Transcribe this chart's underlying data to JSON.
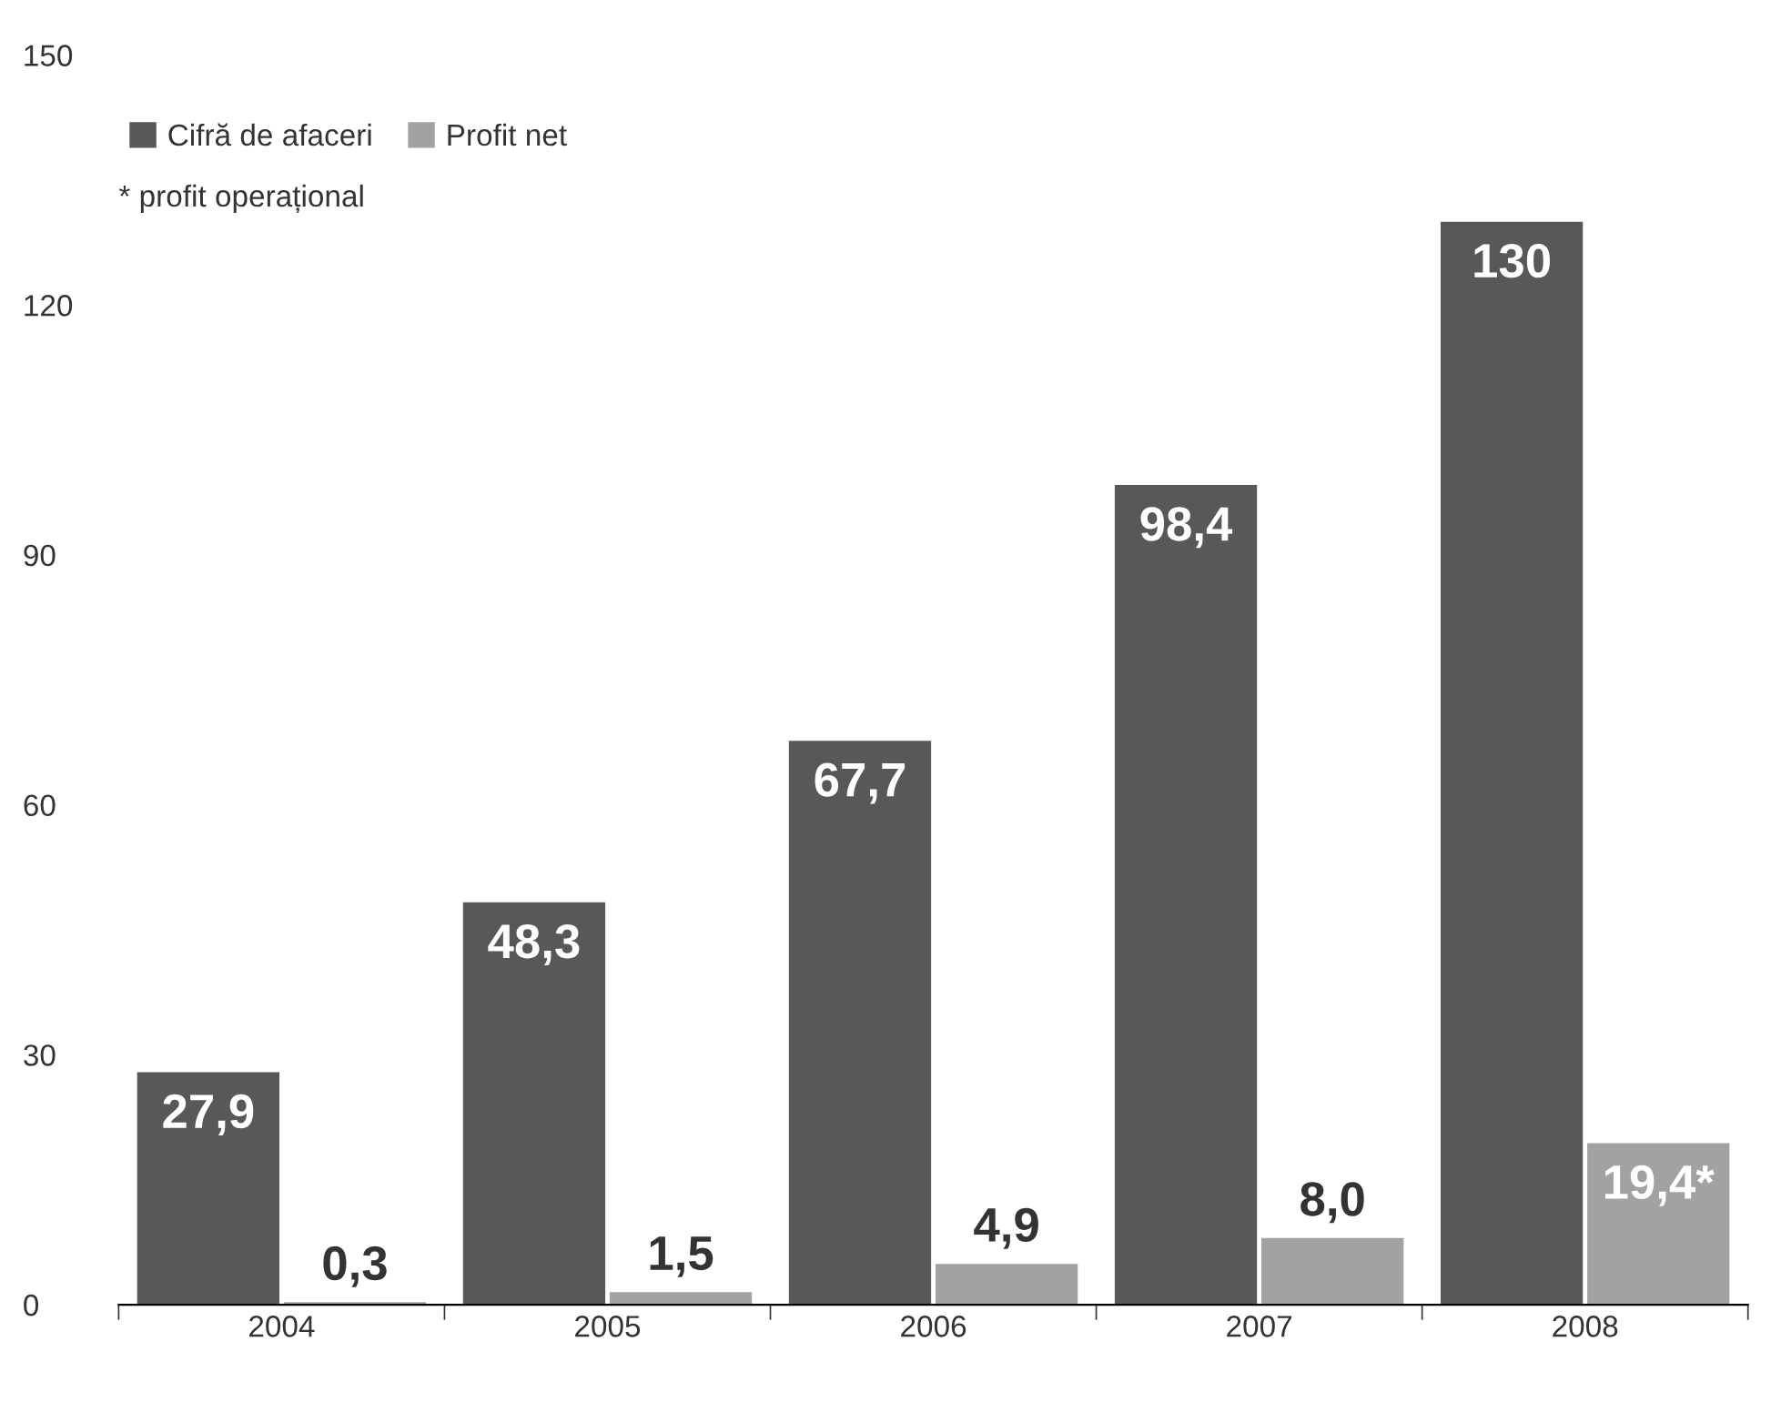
{
  "chart_data": {
    "type": "bar",
    "categories": [
      "2004",
      "2005",
      "2006",
      "2007",
      "2008"
    ],
    "series": [
      {
        "name": "Cifră de afaceri",
        "color": "#58585a",
        "values": [
          27.9,
          48.3,
          67.7,
          98.4,
          130
        ],
        "value_labels": [
          "27,9",
          "48,3",
          "67,7",
          "98,4",
          "130"
        ]
      },
      {
        "name": "Profit net",
        "color": "#a2a2a4",
        "values": [
          0.3,
          1.5,
          4.9,
          8.0,
          19.4
        ],
        "value_labels": [
          "0,3",
          "1,5",
          "4,9",
          "8,0",
          "19,4*"
        ]
      }
    ],
    "annotations": [
      "* profit operațional"
    ],
    "ylim": [
      0,
      150
    ],
    "yticks": [
      0,
      30,
      60,
      90,
      120,
      150
    ],
    "grid": false,
    "legend": "top left"
  }
}
